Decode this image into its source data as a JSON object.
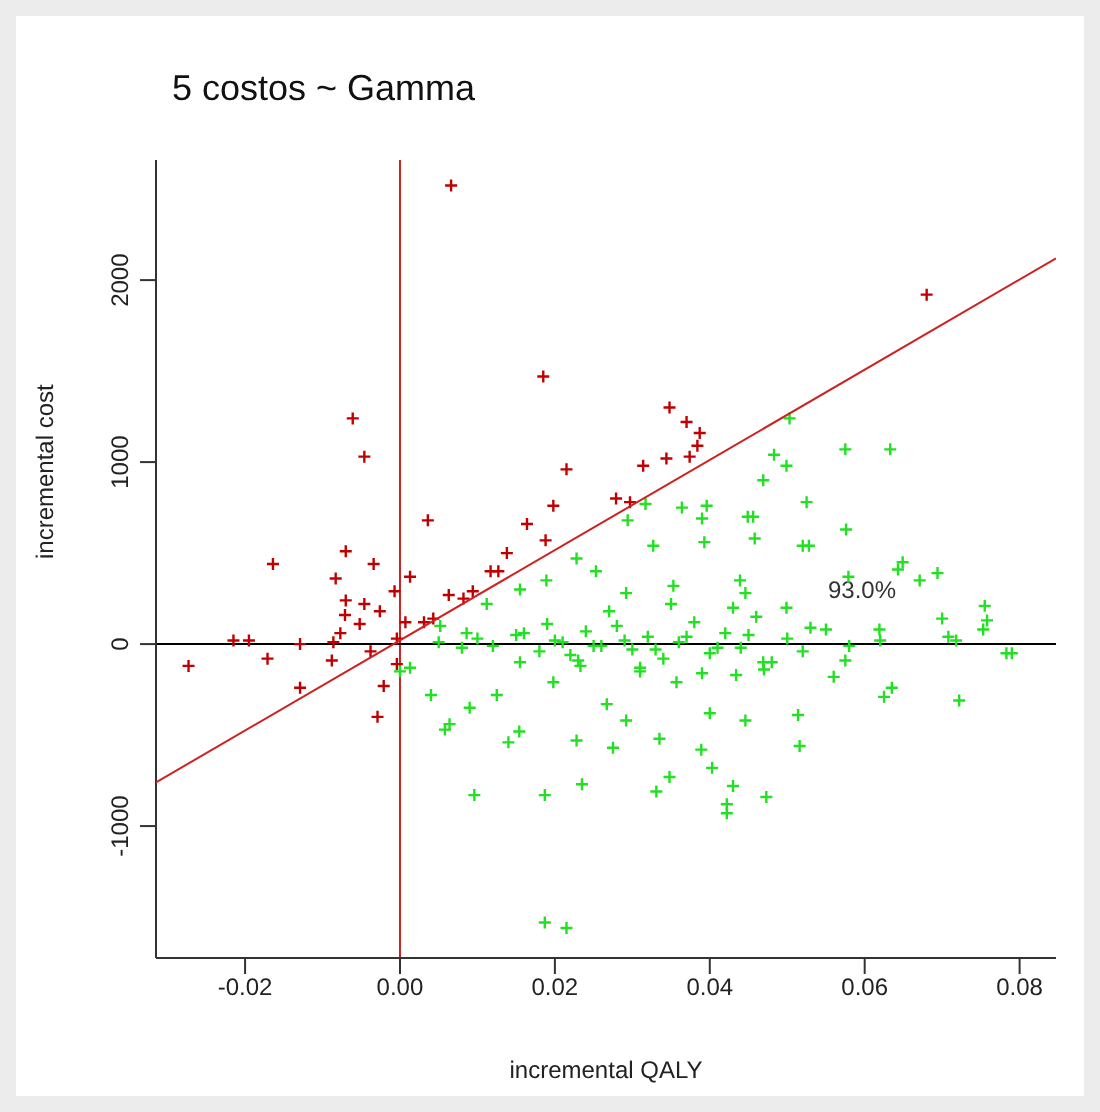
{
  "chart_data": {
    "type": "scatter",
    "title": "5 costos ~ Gamma",
    "xlabel": "incremental QALY",
    "ylabel": "incremental cost",
    "xlim": [
      -0.0315,
      0.0847
    ],
    "ylim": [
      -1725,
      2660
    ],
    "xticks": [
      {
        "value": -0.02,
        "label": "-0.02"
      },
      {
        "value": 0,
        "label": "0.00"
      },
      {
        "value": 0.02,
        "label": "0.02"
      },
      {
        "value": 0.04,
        "label": "0.04"
      },
      {
        "value": 0.06,
        "label": "0.06"
      },
      {
        "value": 0.08,
        "label": "0.08"
      }
    ],
    "yticks": [
      -1000,
      0,
      1000,
      2000
    ],
    "marker": "cross",
    "ref_lines": [
      {
        "axis": "x",
        "value": 0,
        "color": "#cc2222"
      },
      {
        "axis": "y",
        "value": 0,
        "color": "#000000"
      }
    ],
    "annotations": [
      "93.0%"
    ],
    "series": [
      {
        "color": "#c00000",
        "x": [
          0.0066,
          0.068,
          0.0185,
          0.0348,
          0.037,
          0.0387,
          0.0384,
          0.0374,
          0.0344,
          0.0314,
          0.0215,
          -0.0061,
          -0.0046,
          0.0279,
          0.0297,
          0.0198,
          0.0036,
          0.0164,
          0.0188,
          0.0138,
          -0.007,
          -0.0164,
          -0.0034,
          -0.0083,
          0.0117,
          0.0127,
          -0.0007,
          0.0013,
          -0.007,
          -0.0046,
          -0.0026,
          -0.0071,
          -0.0052,
          0.0082,
          0.0094,
          0.0063,
          0.0043,
          0.0031,
          0.0007,
          -0.0086,
          -0.0077,
          -0.0004,
          -0.0215,
          -0.0195,
          -0.0129,
          -0.0273,
          -0.0171,
          -0.0088,
          -0.0038,
          -0.0004,
          -0.0129,
          -0.0021,
          -0.0029
        ],
        "values": [
          2520,
          1920,
          1470,
          1300,
          1220,
          1160,
          1090,
          1030,
          1020,
          980,
          960,
          1240,
          1030,
          800,
          780,
          760,
          680,
          660,
          570,
          500,
          510,
          440,
          440,
          360,
          400,
          400,
          290,
          370,
          240,
          220,
          180,
          160,
          110,
          250,
          290,
          270,
          140,
          120,
          120,
          10,
          60,
          30,
          20,
          20,
          0,
          -120,
          -80,
          -90,
          -40,
          -110,
          -240,
          -230,
          -400
        ]
      },
      {
        "color": "#22e022",
        "x": [
          0.0503,
          0.0575,
          0.0633,
          0.0483,
          0.0499,
          0.0469,
          0.0525,
          0.0317,
          0.0294,
          0.0364,
          0.0396,
          0.039,
          0.0449,
          0.0456,
          0.0393,
          0.0327,
          0.0458,
          0.0576,
          0.052,
          0.0528,
          0.0649,
          0.0643,
          0.0694,
          0.0579,
          0.0671,
          0.0755,
          0.0758,
          0.0753,
          0.0783,
          0.079,
          0.0718,
          0.0708,
          0.07,
          0.0619,
          0.0228,
          0.0253,
          0.0189,
          0.0155,
          0.0112,
          0.0292,
          0.0353,
          0.0439,
          0.0446,
          0.0499,
          0.0052,
          0.0086,
          0.0625,
          0.0635,
          0.0722,
          0.0516,
          0.0473,
          0.0422,
          0.0422,
          0.043,
          0.0403,
          0.0348,
          0.0331,
          0.0389,
          0.0235,
          0.0187,
          0.0096,
          0.0187,
          0.0215,
          0.014,
          0.0154,
          0.0058,
          0.0064,
          0.009,
          0.0125,
          0.004,
          0.0013,
          0.0267,
          0.0292,
          0.04,
          0.0446,
          0.0514,
          0.0228,
          0.0275,
          0.0335,
          0.056,
          0.0575,
          0.0,
          0.0198,
          0.0233,
          0.031,
          0.0357,
          0.0434,
          0.0469,
          0.0155,
          0.005,
          0.008,
          0.01,
          0.012,
          0.015,
          0.018,
          0.02,
          0.022,
          0.024,
          0.026,
          0.028,
          0.03,
          0.032,
          0.034,
          0.036,
          0.038,
          0.04,
          0.042,
          0.044,
          0.046,
          0.048,
          0.05,
          0.052,
          0.055,
          0.058,
          0.062,
          0.021,
          0.025,
          0.029,
          0.033,
          0.037,
          0.041,
          0.045,
          0.027,
          0.031,
          0.035,
          0.039,
          0.019,
          0.023,
          0.043,
          0.047,
          0.016,
          0.053
        ],
        "values": [
          1240,
          1070,
          1070,
          1040,
          980,
          900,
          780,
          770,
          680,
          750,
          760,
          690,
          700,
          700,
          560,
          540,
          580,
          630,
          540,
          540,
          450,
          410,
          390,
          370,
          350,
          210,
          130,
          80,
          -50,
          -50,
          20,
          40,
          140,
          80,
          470,
          400,
          350,
          300,
          220,
          280,
          320,
          350,
          280,
          200,
          100,
          60,
          -290,
          -240,
          -310,
          -560,
          -840,
          -880,
          -930,
          -780,
          -680,
          -730,
          -810,
          -580,
          -770,
          -830,
          -830,
          -1530,
          -1560,
          -540,
          -480,
          -470,
          -440,
          -350,
          -280,
          -280,
          -130,
          -330,
          -420,
          -380,
          -420,
          -390,
          -530,
          -570,
          -520,
          -180,
          -90,
          -150,
          -210,
          -120,
          -150,
          -210,
          -170,
          -100,
          -100,
          10,
          -20,
          30,
          -10,
          50,
          -40,
          20,
          -60,
          70,
          -10,
          100,
          -30,
          40,
          -80,
          10,
          120,
          -50,
          60,
          -20,
          150,
          -100,
          30,
          -40,
          80,
          -10,
          20,
          10,
          -10,
          20,
          -30,
          40,
          -20,
          50,
          180,
          -130,
          220,
          -160,
          110,
          -90,
          200,
          -140,
          60,
          90
        ]
      },
      {
        "type": "line",
        "color": "#cc2222",
        "marker": "none",
        "x": [
          -0.0315,
          0.0847
        ],
        "values": [
          -760,
          2120
        ]
      }
    ]
  }
}
